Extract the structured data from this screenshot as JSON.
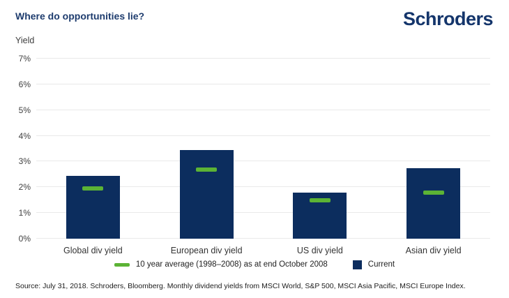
{
  "header": {
    "title": "Where do opportunities lie?",
    "logo": "Schroders"
  },
  "colors": {
    "bar_navy": "#0c2d5e",
    "avg_green": "#5cb335",
    "brand_navy": "#14356b",
    "title_navy": "#1e3c6e",
    "gridline": "#e9e9e9"
  },
  "chart_data": {
    "type": "bar",
    "title": "Where do opportunities lie?",
    "ylabel": "Yield",
    "xlabel": "",
    "categories": [
      "Global div yield",
      "European div yield",
      "US div yield",
      "Asian div yield"
    ],
    "series": [
      {
        "name": "10 year average (1998–2008) as at end October 2008",
        "marker": "dash",
        "values": [
          1.95,
          2.7,
          1.5,
          1.8
        ]
      },
      {
        "name": "Current",
        "marker": "bar",
        "values": [
          2.45,
          3.45,
          1.8,
          2.75
        ]
      }
    ],
    "ylim": [
      0,
      7
    ],
    "yticks": [
      "0%",
      "1%",
      "2%",
      "3%",
      "4%",
      "5%",
      "6%",
      "7%"
    ],
    "grid": true,
    "legend_position": "bottom"
  },
  "legend": {
    "items": [
      {
        "label": "10 year average (1998–2008) as at end October 2008",
        "swatch": "dash",
        "color": "#5cb335"
      },
      {
        "label": "Current",
        "swatch": "square",
        "color": "#0c2d5e"
      }
    ]
  },
  "footer": {
    "source": "Source: July 31, 2018. Schroders, Bloomberg. Monthly dividend yields from MSCI World, S&P 500, MSCI Asia Pacific, MSCI Europe Index."
  }
}
